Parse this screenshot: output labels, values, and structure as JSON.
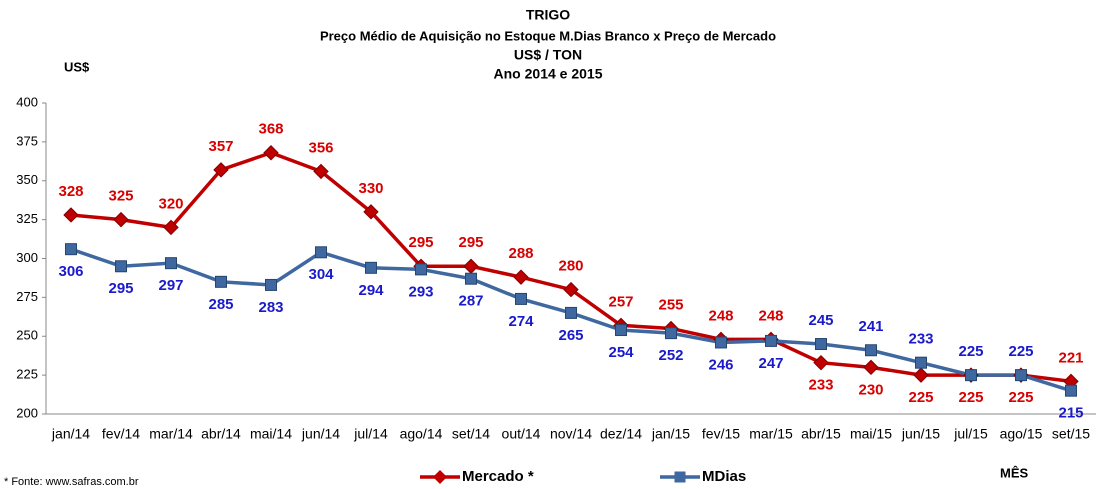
{
  "chart_data": {
    "type": "line",
    "title": "TRIGO",
    "subtitle": [
      "Preço Médio de Aquisição no Estoque M.Dias Branco x Preço de Mercado",
      "US$ / TON",
      "Ano 2014 e 2015"
    ],
    "y_label": "US$",
    "x_label": "MÊS",
    "annotation": "* Fonte: www.safras.com.br",
    "categories": [
      "jan/14",
      "fev/14",
      "mar/14",
      "abr/14",
      "mai/14",
      "jun/14",
      "jul/14",
      "ago/14",
      "set/14",
      "out/14",
      "nov/14",
      "dez/14",
      "jan/15",
      "fev/15",
      "mar/15",
      "abr/15",
      "mai/15",
      "jun/15",
      "jul/15",
      "ago/15",
      "set/15"
    ],
    "series": [
      {
        "name": "Mercado *",
        "color": "#c00000",
        "label_color": "#d80000",
        "values": [
          328,
          325,
          320,
          357,
          368,
          356,
          330,
          295,
          295,
          288,
          280,
          257,
          255,
          248,
          248,
          233,
          230,
          225,
          225,
          225,
          221
        ]
      },
      {
        "name": "MDias",
        "color": "#3f67a0",
        "label_color": "#1a1acc",
        "values": [
          306,
          295,
          297,
          285,
          283,
          304,
          294,
          293,
          287,
          274,
          265,
          254,
          252,
          246,
          247,
          245,
          241,
          233,
          225,
          225,
          215
        ]
      }
    ],
    "ylim": [
      200,
      400
    ],
    "yticks": [
      200,
      225,
      250,
      275,
      300,
      325,
      350,
      375,
      400
    ]
  }
}
